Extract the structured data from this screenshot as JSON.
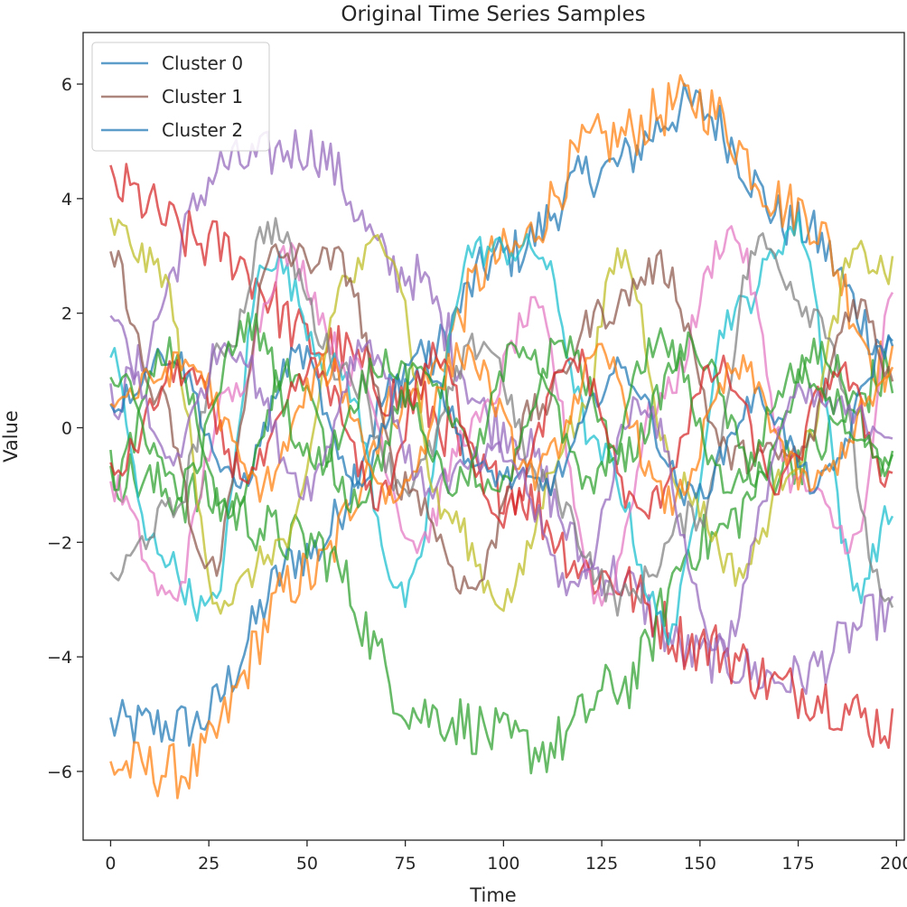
{
  "chart_data": {
    "type": "line",
    "title": "Original Time Series Samples",
    "xlabel": "Time",
    "ylabel": "Value",
    "xlim": [
      -7,
      202
    ],
    "ylim": [
      -7.2,
      6.9
    ],
    "xticks": [
      0,
      25,
      50,
      75,
      100,
      125,
      150,
      175,
      200
    ],
    "xtick_labels": [
      "0",
      "25",
      "50",
      "75",
      "100",
      "125",
      "150",
      "175",
      "200"
    ],
    "yticks": [
      -6,
      -4,
      -2,
      0,
      2,
      4,
      6
    ],
    "ytick_labels": [
      "−6",
      "−4",
      "−2",
      "0",
      "2",
      "4",
      "6"
    ],
    "grid": false,
    "legend_position": "top-left",
    "legend": [
      {
        "label": "Cluster 0",
        "color": "#1f77b4"
      },
      {
        "label": "Cluster 1",
        "color": "#8c564b"
      },
      {
        "label": "Cluster 2",
        "color": "#1f77b4"
      }
    ],
    "x_range": [
      0,
      199
    ],
    "series": [
      {
        "name": "blue rising wave",
        "color": "#1f77b4",
        "noise": 0.45,
        "x": [
          0,
          20,
          50,
          75,
          100,
          125,
          148,
          175,
          199
        ],
        "values": [
          -5.2,
          -5.2,
          -2.2,
          0.8,
          3.0,
          4.5,
          5.6,
          3.5,
          1.4
        ]
      },
      {
        "name": "orange rising wave",
        "color": "#ff7f0e",
        "noise": 0.5,
        "x": [
          0,
          18,
          50,
          75,
          100,
          125,
          148,
          175,
          199
        ],
        "values": [
          -5.9,
          -6.0,
          -2.6,
          0.5,
          3.0,
          5.0,
          5.7,
          3.8,
          1.0
        ]
      },
      {
        "name": "purple falling wave",
        "color": "#9467bd",
        "noise": 0.45,
        "x": [
          0,
          30,
          50,
          75,
          100,
          125,
          150,
          172,
          199
        ],
        "values": [
          0.5,
          4.6,
          4.9,
          2.7,
          0.0,
          -2.5,
          -4.0,
          -4.4,
          -3.2
        ]
      },
      {
        "name": "red falling wave",
        "color": "#d62728",
        "noise": 0.5,
        "x": [
          0,
          25,
          55,
          75,
          100,
          125,
          150,
          175,
          199
        ],
        "values": [
          4.2,
          3.2,
          1.4,
          0.5,
          -1.0,
          -2.6,
          -3.8,
          -4.6,
          -5.2
        ]
      },
      {
        "name": "green valley wave",
        "color": "#2ca02c",
        "noise": 0.5,
        "x": [
          0,
          20,
          50,
          80,
          110,
          130,
          150,
          175,
          199
        ],
        "values": [
          -0.8,
          -1.2,
          -2.0,
          -5.0,
          -5.6,
          -4.5,
          -2.0,
          -0.5,
          0.9
        ]
      },
      {
        "name": "teal sine",
        "color": "#17becf",
        "noise": 0.3,
        "x": [
          0,
          10,
          25,
          40,
          58,
          75,
          92,
          108,
          125,
          142,
          158,
          175,
          190,
          199
        ],
        "values": [
          1.3,
          -2.0,
          -3.2,
          3.0,
          1.0,
          -3.0,
          3.1,
          3.1,
          -0.5,
          -3.5,
          2.0,
          3.5,
          -2.8,
          -1.5
        ]
      },
      {
        "name": "pink sine",
        "color": "#e377c2",
        "noise": 0.3,
        "x": [
          0,
          15,
          30,
          45,
          62,
          78,
          92,
          108,
          125,
          140,
          158,
          175,
          190,
          199
        ],
        "values": [
          -1.0,
          -3.0,
          0.5,
          3.0,
          1.0,
          -2.0,
          0.0,
          2.0,
          -3.0,
          0.5,
          3.4,
          -1.0,
          -2.0,
          2.2
        ]
      },
      {
        "name": "olive sine",
        "color": "#bcbd22",
        "noise": 0.3,
        "x": [
          0,
          12,
          28,
          45,
          60,
          70,
          85,
          100,
          118,
          130,
          145,
          160,
          175,
          190,
          199
        ],
        "values": [
          3.5,
          2.8,
          -3.0,
          -2.0,
          2.6,
          3.3,
          -1.5,
          -3.0,
          0.0,
          3.0,
          -1.0,
          -2.5,
          -0.5,
          3.0,
          2.7
        ]
      },
      {
        "name": "gray sine",
        "color": "#7f7f7f",
        "noise": 0.3,
        "x": [
          0,
          15,
          30,
          40,
          60,
          75,
          95,
          110,
          130,
          150,
          165,
          180,
          199
        ],
        "values": [
          -2.6,
          -1.5,
          1.5,
          3.5,
          1.0,
          -1.0,
          1.5,
          -1.0,
          -3.0,
          -1.5,
          3.2,
          2.0,
          -3.3
        ]
      },
      {
        "name": "brown sine",
        "color": "#8c564b",
        "noise": 0.3,
        "x": [
          0,
          12,
          25,
          42,
          58,
          75,
          92,
          108,
          125,
          140,
          158,
          175,
          190,
          199
        ],
        "values": [
          3.0,
          0.5,
          -2.5,
          3.0,
          2.9,
          -1.0,
          -2.8,
          0.3,
          2.0,
          2.8,
          -0.5,
          -0.5,
          2.2,
          1.0
        ]
      },
      {
        "name": "blue sine 2",
        "color": "#1f77b4",
        "noise": 0.25,
        "x": [
          0,
          15,
          32,
          48,
          62,
          78,
          95,
          110,
          130,
          148,
          165,
          180,
          199
        ],
        "values": [
          0.4,
          1.3,
          -1.0,
          1.3,
          -1.0,
          1.3,
          -0.8,
          -1.0,
          1.0,
          -1.2,
          0.5,
          -1.0,
          1.5
        ]
      },
      {
        "name": "green sine 2",
        "color": "#2ca02c",
        "noise": 0.3,
        "x": [
          0,
          15,
          30,
          45,
          62,
          80,
          98,
          115,
          130,
          148,
          165,
          180,
          199
        ],
        "values": [
          -0.9,
          1.3,
          -1.5,
          1.0,
          -1.2,
          1.0,
          -1.2,
          1.5,
          -0.5,
          1.4,
          -0.8,
          1.3,
          -0.7
        ]
      },
      {
        "name": "red sine 2",
        "color": "#d62728",
        "noise": 0.3,
        "x": [
          0,
          18,
          35,
          52,
          68,
          82,
          100,
          118,
          135,
          155,
          170,
          185,
          199
        ],
        "values": [
          -0.8,
          1.0,
          -0.8,
          1.0,
          -1.2,
          1.2,
          -1.5,
          1.2,
          -1.5,
          1.0,
          -1.0,
          1.0,
          -0.9
        ]
      },
      {
        "name": "orange sine 2",
        "color": "#ff7f0e",
        "noise": 0.3,
        "x": [
          0,
          20,
          38,
          55,
          72,
          90,
          108,
          125,
          142,
          160,
          178,
          199
        ],
        "values": [
          0.5,
          1.1,
          -1.0,
          1.0,
          -1.2,
          1.3,
          -0.8,
          1.2,
          -1.3,
          1.0,
          -1.0,
          0.8
        ]
      },
      {
        "name": "purple sine 2",
        "color": "#9467bd",
        "noise": 0.3,
        "x": [
          0,
          15,
          30,
          50,
          65,
          80,
          100,
          118,
          135,
          155,
          175,
          199
        ],
        "values": [
          1.9,
          -0.5,
          1.5,
          -1.0,
          1.5,
          -1.0,
          -0.5,
          -2.8,
          0.5,
          -3.8,
          0.5,
          0.0
        ]
      },
      {
        "name": "green sine 3",
        "color": "#2ca02c",
        "noise": 0.3,
        "x": [
          0,
          18,
          35,
          52,
          70,
          88,
          105,
          122,
          140,
          158,
          175,
          199
        ],
        "values": [
          0.9,
          -1.0,
          1.8,
          -0.6,
          1.2,
          -1.0,
          1.5,
          -1.0,
          1.5,
          -1.0,
          1.0,
          -0.6
        ]
      }
    ]
  }
}
